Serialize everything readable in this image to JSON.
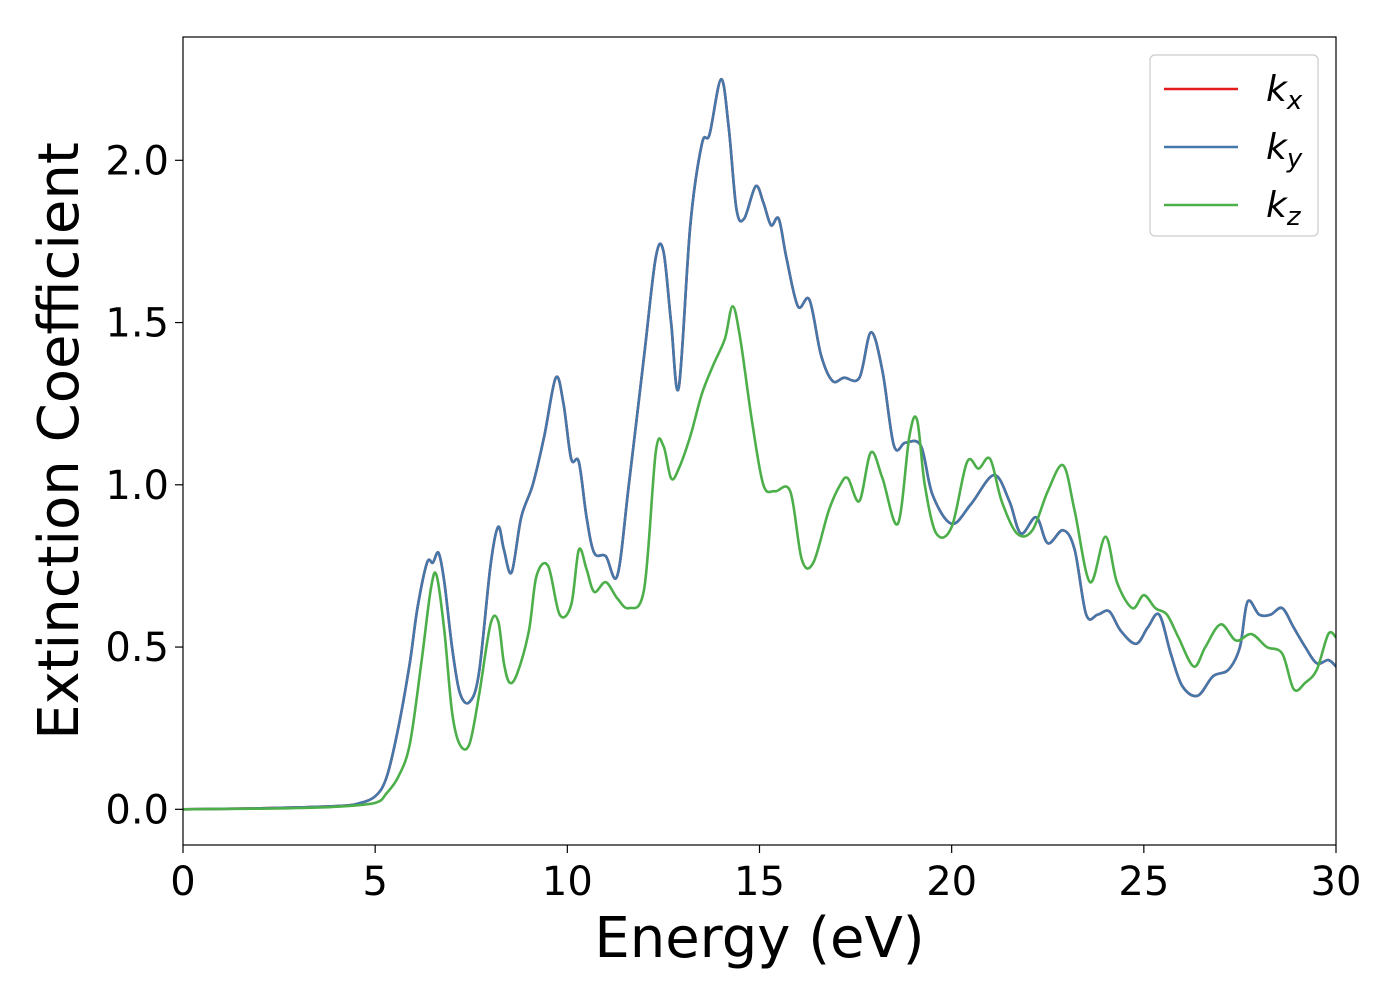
{
  "chart_data": {
    "type": "line",
    "xlabel": "Energy (eV)",
    "ylabel": "Extinction Coefficient",
    "xlim": [
      0,
      30
    ],
    "ylim": [
      -0.11,
      2.38
    ],
    "xticks": [
      "0",
      "5",
      "10",
      "15",
      "20",
      "25",
      "30"
    ],
    "yticks": [
      "0.0",
      "0.5",
      "1.0",
      "1.5",
      "2.0"
    ],
    "grid": false,
    "legend_position": "top-right",
    "series": [
      {
        "name": "k_x",
        "label_main": "k",
        "label_sub": "x",
        "color": "#e41a1c",
        "x": [
          0,
          2,
          3,
          4,
          4.5,
          5,
          5.3,
          5.6,
          5.9,
          6.1,
          6.35,
          6.5,
          6.65,
          6.8,
          7,
          7.2,
          7.45,
          7.7,
          8.0,
          8.2,
          8.35,
          8.55,
          8.8,
          9.1,
          9.4,
          9.7,
          9.9,
          10.1,
          10.3,
          10.5,
          10.7,
          11,
          11.3,
          11.6,
          12,
          12.3,
          12.5,
          12.7,
          12.9,
          13.2,
          13.5,
          13.7,
          14.0,
          14.2,
          14.4,
          14.6,
          14.9,
          15.1,
          15.3,
          15.5,
          15.7,
          16,
          16.3,
          16.6,
          16.9,
          17.2,
          17.6,
          17.9,
          18.2,
          18.5,
          18.8,
          19.2,
          19.5,
          20,
          20.5,
          21.1,
          21.5,
          21.8,
          22.2,
          22.5,
          22.9,
          23.2,
          23.5,
          23.8,
          24.1,
          24.4,
          24.8,
          25.1,
          25.4,
          25.7,
          26.0,
          26.4,
          26.8,
          27.2,
          27.5,
          27.7,
          28.0,
          28.3,
          28.6,
          28.9,
          29.2,
          29.5,
          29.8,
          30
        ],
        "y": [
          0,
          0.003,
          0.006,
          0.01,
          0.016,
          0.04,
          0.1,
          0.25,
          0.45,
          0.62,
          0.76,
          0.76,
          0.79,
          0.7,
          0.5,
          0.36,
          0.33,
          0.42,
          0.75,
          0.87,
          0.8,
          0.73,
          0.9,
          1.0,
          1.15,
          1.33,
          1.25,
          1.08,
          1.07,
          0.9,
          0.79,
          0.78,
          0.72,
          1.0,
          1.4,
          1.7,
          1.72,
          1.5,
          1.3,
          1.8,
          2.05,
          2.08,
          2.25,
          2.1,
          1.85,
          1.82,
          1.92,
          1.87,
          1.8,
          1.82,
          1.7,
          1.55,
          1.57,
          1.4,
          1.32,
          1.33,
          1.33,
          1.47,
          1.35,
          1.12,
          1.13,
          1.12,
          0.97,
          0.88,
          0.94,
          1.03,
          0.95,
          0.85,
          0.9,
          0.82,
          0.86,
          0.8,
          0.6,
          0.6,
          0.61,
          0.55,
          0.51,
          0.56,
          0.6,
          0.48,
          0.38,
          0.35,
          0.41,
          0.43,
          0.5,
          0.64,
          0.6,
          0.6,
          0.62,
          0.56,
          0.5,
          0.45,
          0.46,
          0.44
        ]
      },
      {
        "name": "k_y",
        "label_main": "k",
        "label_sub": "y",
        "color": "#4477aa",
        "x": [
          0,
          2,
          3,
          4,
          4.5,
          5,
          5.3,
          5.6,
          5.9,
          6.1,
          6.35,
          6.5,
          6.65,
          6.8,
          7,
          7.2,
          7.45,
          7.7,
          8.0,
          8.2,
          8.35,
          8.55,
          8.8,
          9.1,
          9.4,
          9.7,
          9.9,
          10.1,
          10.3,
          10.5,
          10.7,
          11,
          11.3,
          11.6,
          12,
          12.3,
          12.5,
          12.7,
          12.9,
          13.2,
          13.5,
          13.7,
          14.0,
          14.2,
          14.4,
          14.6,
          14.9,
          15.1,
          15.3,
          15.5,
          15.7,
          16,
          16.3,
          16.6,
          16.9,
          17.2,
          17.6,
          17.9,
          18.2,
          18.5,
          18.8,
          19.2,
          19.5,
          20,
          20.5,
          21.1,
          21.5,
          21.8,
          22.2,
          22.5,
          22.9,
          23.2,
          23.5,
          23.8,
          24.1,
          24.4,
          24.8,
          25.1,
          25.4,
          25.7,
          26.0,
          26.4,
          26.8,
          27.2,
          27.5,
          27.7,
          28.0,
          28.3,
          28.6,
          28.9,
          29.2,
          29.5,
          29.8,
          30
        ],
        "y": [
          0,
          0.003,
          0.006,
          0.01,
          0.016,
          0.04,
          0.1,
          0.25,
          0.45,
          0.62,
          0.76,
          0.76,
          0.79,
          0.7,
          0.5,
          0.36,
          0.33,
          0.42,
          0.75,
          0.87,
          0.8,
          0.73,
          0.9,
          1.0,
          1.15,
          1.33,
          1.25,
          1.08,
          1.07,
          0.9,
          0.79,
          0.78,
          0.72,
          1.0,
          1.4,
          1.7,
          1.72,
          1.5,
          1.3,
          1.8,
          2.05,
          2.08,
          2.25,
          2.1,
          1.85,
          1.82,
          1.92,
          1.87,
          1.8,
          1.82,
          1.7,
          1.55,
          1.57,
          1.4,
          1.32,
          1.33,
          1.33,
          1.47,
          1.35,
          1.12,
          1.13,
          1.12,
          0.97,
          0.88,
          0.94,
          1.03,
          0.95,
          0.85,
          0.9,
          0.82,
          0.86,
          0.8,
          0.6,
          0.6,
          0.61,
          0.55,
          0.51,
          0.56,
          0.6,
          0.48,
          0.38,
          0.35,
          0.41,
          0.43,
          0.5,
          0.64,
          0.6,
          0.6,
          0.62,
          0.56,
          0.5,
          0.45,
          0.46,
          0.44
        ]
      },
      {
        "name": "k_z",
        "label_main": "k",
        "label_sub": "z",
        "color": "#4daf4a",
        "x": [
          0,
          2,
          3,
          4,
          5,
          5.3,
          5.6,
          5.9,
          6.2,
          6.45,
          6.6,
          6.8,
          7.0,
          7.2,
          7.45,
          7.7,
          8.0,
          8.2,
          8.35,
          8.5,
          8.7,
          9.0,
          9.2,
          9.5,
          9.8,
          10.1,
          10.3,
          10.5,
          10.7,
          11.0,
          11.3,
          11.6,
          12.0,
          12.3,
          12.5,
          12.7,
          12.9,
          13.2,
          13.5,
          13.8,
          14.1,
          14.3,
          14.5,
          14.8,
          15.1,
          15.4,
          15.8,
          16.1,
          16.4,
          16.8,
          17.1,
          17.3,
          17.6,
          17.9,
          18.2,
          18.6,
          18.9,
          19.1,
          19.3,
          19.6,
          20.0,
          20.4,
          20.7,
          21.0,
          21.3,
          21.7,
          22.1,
          22.5,
          22.9,
          23.2,
          23.6,
          24.0,
          24.3,
          24.7,
          25.0,
          25.3,
          25.6,
          25.9,
          26.3,
          26.6,
          27.0,
          27.4,
          27.8,
          28.2,
          28.6,
          28.9,
          29.2,
          29.5,
          29.8,
          30
        ],
        "y": [
          0,
          0.002,
          0.004,
          0.008,
          0.02,
          0.05,
          0.1,
          0.2,
          0.45,
          0.68,
          0.72,
          0.55,
          0.3,
          0.2,
          0.2,
          0.35,
          0.57,
          0.58,
          0.45,
          0.39,
          0.42,
          0.55,
          0.72,
          0.75,
          0.6,
          0.63,
          0.8,
          0.74,
          0.67,
          0.7,
          0.65,
          0.62,
          0.68,
          1.1,
          1.12,
          1.02,
          1.05,
          1.15,
          1.28,
          1.37,
          1.45,
          1.55,
          1.45,
          1.2,
          1.0,
          0.98,
          0.98,
          0.77,
          0.76,
          0.92,
          1.0,
          1.02,
          0.95,
          1.1,
          1.02,
          0.88,
          1.15,
          1.2,
          1.0,
          0.85,
          0.87,
          1.07,
          1.05,
          1.08,
          0.95,
          0.85,
          0.86,
          0.98,
          1.06,
          0.92,
          0.7,
          0.84,
          0.7,
          0.62,
          0.66,
          0.62,
          0.6,
          0.53,
          0.44,
          0.5,
          0.57,
          0.52,
          0.54,
          0.5,
          0.48,
          0.37,
          0.39,
          0.43,
          0.54,
          0.53
        ]
      }
    ]
  }
}
